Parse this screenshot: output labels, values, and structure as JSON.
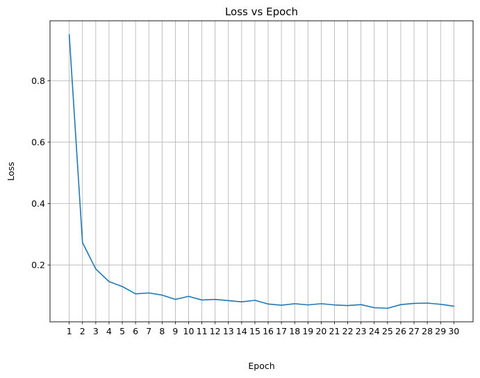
{
  "chart_data": {
    "type": "line",
    "title": "Loss vs Epoch",
    "xlabel": "Epoch",
    "ylabel": "Loss",
    "x": [
      1,
      2,
      3,
      4,
      5,
      6,
      7,
      8,
      9,
      10,
      11,
      12,
      13,
      14,
      15,
      16,
      17,
      18,
      19,
      20,
      21,
      22,
      23,
      24,
      25,
      26,
      27,
      28,
      29,
      30
    ],
    "series": [
      {
        "values": [
          0.95,
          0.273,
          0.187,
          0.146,
          0.13,
          0.106,
          0.109,
          0.102,
          0.088,
          0.098,
          0.086,
          0.088,
          0.084,
          0.08,
          0.085,
          0.073,
          0.069,
          0.074,
          0.07,
          0.074,
          0.07,
          0.068,
          0.071,
          0.061,
          0.059,
          0.071,
          0.075,
          0.076,
          0.072,
          0.066
        ],
        "color": "#1f77b4"
      }
    ],
    "xlim": [
      -0.45,
      31.45
    ],
    "ylim": [
      0.015,
      0.995
    ],
    "yticks": [
      0.2,
      0.4,
      0.6,
      0.8
    ],
    "ytick_labels": [
      "0.2",
      "0.4",
      "0.6",
      "0.8"
    ],
    "xticks": [
      1,
      2,
      3,
      4,
      5,
      6,
      7,
      8,
      9,
      10,
      11,
      12,
      13,
      14,
      15,
      16,
      17,
      18,
      19,
      20,
      21,
      22,
      23,
      24,
      25,
      26,
      27,
      28,
      29,
      30
    ],
    "xtick_labels": [
      "1",
      "2",
      "3",
      "4",
      "5",
      "6",
      "7",
      "8",
      "9",
      "10",
      "11",
      "12",
      "13",
      "14",
      "15",
      "16",
      "17",
      "18",
      "19",
      "20",
      "21",
      "22",
      "23",
      "24",
      "25",
      "26",
      "27",
      "28",
      "29",
      "30"
    ],
    "grid": true,
    "grid_color": "#b0b0b0",
    "legend": "none"
  }
}
